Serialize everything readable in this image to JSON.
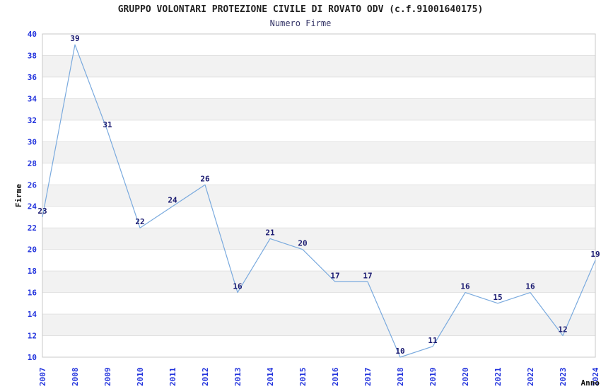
{
  "chart_data": {
    "type": "line",
    "title": "GRUPPO VOLONTARI PROTEZIONE CIVILE DI ROVATO ODV (c.f.91001640175)",
    "subtitle": "Numero Firme",
    "xlabel": "Anno",
    "ylabel": "Firme",
    "categories": [
      "2007",
      "2008",
      "2009",
      "2010",
      "2011",
      "2012",
      "2013",
      "2014",
      "2015",
      "2016",
      "2017",
      "2018",
      "2019",
      "2020",
      "2021",
      "2022",
      "2023",
      "2024"
    ],
    "values": [
      23,
      39,
      31,
      22,
      24,
      26,
      16,
      21,
      20,
      17,
      17,
      10,
      11,
      16,
      15,
      16,
      12,
      19
    ],
    "ylim": [
      10,
      40
    ],
    "ytick_step": 2,
    "grid": true,
    "alternating_bands": true,
    "legend": "none",
    "colors": {
      "line": "#7aaade",
      "tick_label": "#2233dd",
      "data_label": "#191970",
      "band": "#f2f2f2",
      "grid": "#e2e2e2",
      "border": "#c8c8c8",
      "title": "#222222",
      "subtitle": "#333366",
      "axis_label": "#111111",
      "background": "#ffffff"
    }
  }
}
